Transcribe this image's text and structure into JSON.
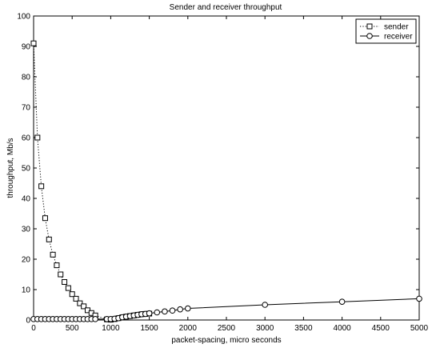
{
  "chart_data": {
    "type": "line",
    "title": "Sender and receiver throughput",
    "xlabel": "packet-spacing, micro seconds",
    "ylabel": "throughput, Mb/s",
    "xlim": [
      0,
      5000
    ],
    "ylim": [
      0,
      100
    ],
    "xticks": [
      0,
      500,
      1000,
      1500,
      2000,
      2500,
      3000,
      3500,
      4000,
      4500,
      5000
    ],
    "yticks": [
      0,
      10,
      20,
      30,
      40,
      50,
      60,
      70,
      80,
      90,
      100
    ],
    "grid": false,
    "legend_position": "top-right",
    "series": [
      {
        "name": "sender",
        "line_style": "dotted",
        "marker": "square",
        "x": [
          0,
          50,
          100,
          150,
          200,
          250,
          300,
          350,
          400,
          450,
          500,
          550,
          600,
          650,
          700,
          750,
          800,
          950,
          1000,
          1050,
          1100,
          1150,
          1200,
          1250,
          1300,
          1350,
          1400,
          1450,
          1500
        ],
        "y": [
          91,
          60,
          44,
          33.5,
          26.5,
          21.5,
          18,
          15,
          12.5,
          10.5,
          8.5,
          7,
          5.5,
          4.5,
          3.2,
          2.3,
          1.5,
          0.2,
          0.1,
          0.3,
          0.6,
          0.9,
          1.1,
          1.3,
          1.5,
          1.7,
          1.9,
          2.0,
          2.1
        ]
      },
      {
        "name": "receiver",
        "line_style": "solid",
        "marker": "circle",
        "x": [
          0,
          50,
          100,
          150,
          200,
          250,
          300,
          350,
          400,
          450,
          500,
          550,
          600,
          650,
          700,
          750,
          800,
          950,
          1000,
          1050,
          1100,
          1150,
          1200,
          1250,
          1300,
          1350,
          1400,
          1450,
          1500,
          1600,
          1700,
          1800,
          1900,
          2000,
          3000,
          4000,
          5000
        ],
        "y": [
          0.3,
          0.3,
          0.3,
          0.3,
          0.3,
          0.3,
          0.3,
          0.3,
          0.3,
          0.3,
          0.3,
          0.3,
          0.3,
          0.3,
          0.3,
          0.3,
          0.3,
          0.3,
          0.3,
          0.4,
          0.6,
          0.9,
          1.1,
          1.3,
          1.5,
          1.7,
          1.9,
          2.0,
          2.2,
          2.5,
          2.8,
          3.1,
          3.5,
          3.8,
          5.0,
          6.0,
          7.0
        ]
      }
    ]
  }
}
